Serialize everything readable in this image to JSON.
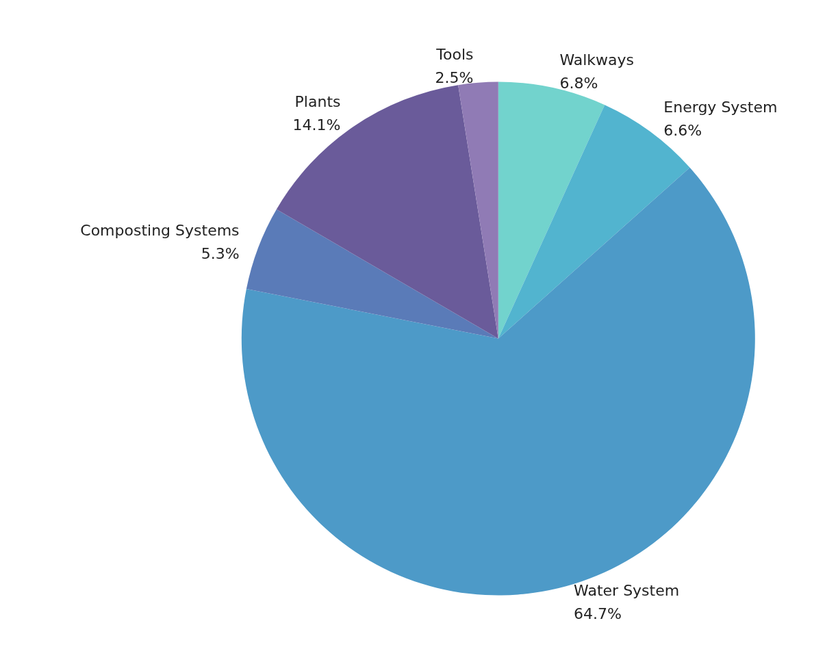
{
  "chart_data": {
    "type": "pie",
    "categories": [
      "Walkways",
      "Energy System",
      "Water System",
      "Composting Systems",
      "Plants",
      "Tools"
    ],
    "values": [
      6.8,
      6.6,
      64.7,
      5.3,
      14.1,
      2.5
    ],
    "value_labels": [
      "6.8%",
      "6.6%",
      "64.7%",
      "5.3%",
      "14.1%",
      "2.5%"
    ],
    "colors": [
      "#72d3cd",
      "#52b4cf",
      "#4d9ac8",
      "#5a7bb8",
      "#6a5b9a",
      "#907bb5"
    ],
    "legend": false
  }
}
